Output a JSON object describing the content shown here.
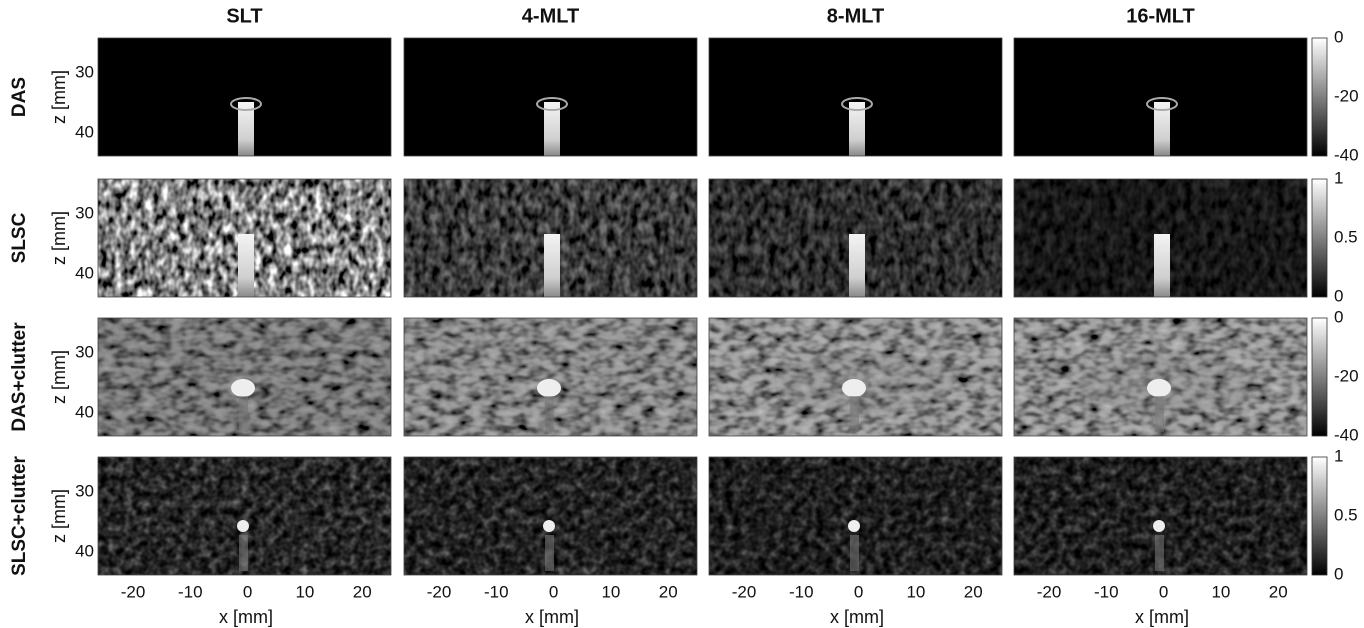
{
  "columns": [
    "SLT",
    "4-MLT",
    "8-MLT",
    "16-MLT"
  ],
  "rows": [
    {
      "label": "DAS",
      "colorbar": [
        "0",
        "-20",
        "-40"
      ]
    },
    {
      "label": "SLSC",
      "colorbar": [
        "1",
        "0.5",
        "0"
      ]
    },
    {
      "label": "DAS+clutter",
      "colorbar": [
        "0",
        "-20",
        "-40"
      ]
    },
    {
      "label": "SLSC+clutter",
      "colorbar": [
        "1",
        "0.5",
        "0"
      ]
    }
  ],
  "y_axis": {
    "label": "z [mm]",
    "ticks": [
      "30",
      "40"
    ]
  },
  "x_axis": {
    "label": "x [mm]",
    "ticks": [
      "-20",
      "-10",
      "0",
      "10",
      "20"
    ]
  }
}
